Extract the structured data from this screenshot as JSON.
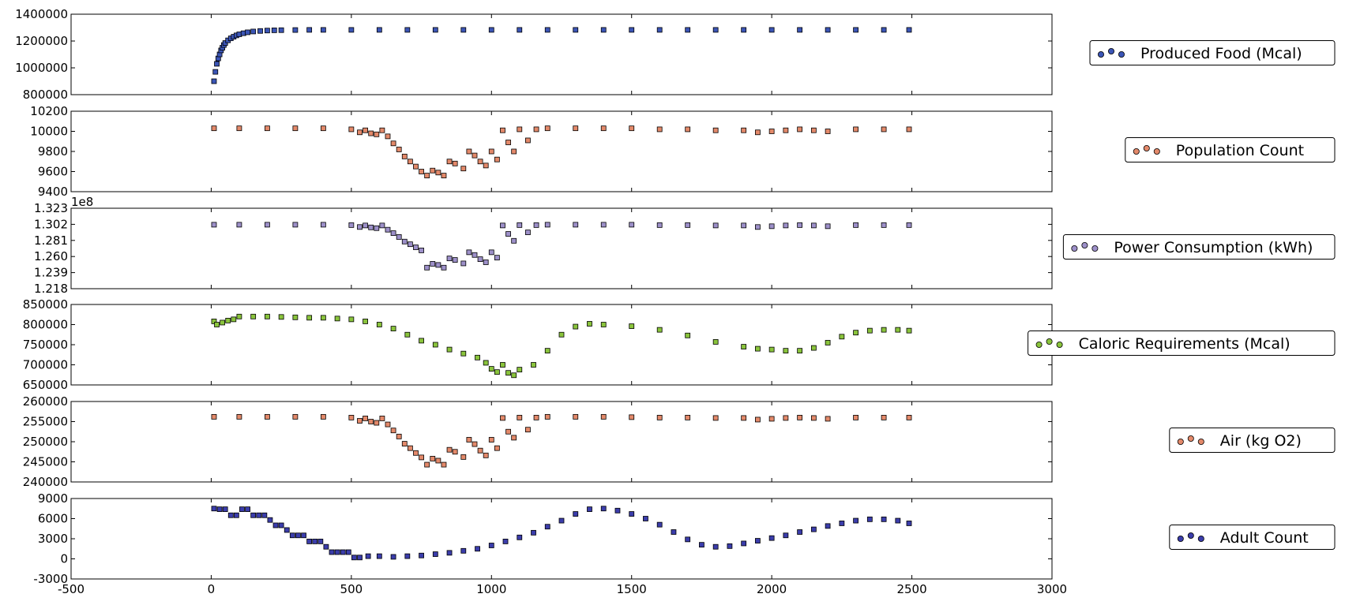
{
  "figure": {
    "x_axis": {
      "range": [
        -500,
        3000
      ],
      "ticks": [
        "-500",
        "0",
        "500",
        "1000",
        "1500",
        "2000",
        "2500",
        "3000"
      ]
    },
    "marker_edge_color": "#000000"
  },
  "chart_data": [
    {
      "type": "scatter",
      "series_name": "Produced Food (Mcal)",
      "color": "#3b55b6",
      "ylim": [
        800000,
        1400000
      ],
      "y_ticks": [
        "800000",
        "1000000",
        "1200000",
        "1400000"
      ],
      "offset_label": "",
      "x": [
        10,
        15,
        20,
        25,
        30,
        35,
        40,
        45,
        50,
        60,
        70,
        80,
        90,
        100,
        115,
        130,
        150,
        175,
        200,
        225,
        250,
        300,
        350,
        400,
        500,
        600,
        700,
        800,
        900,
        1000,
        1100,
        1200,
        1300,
        1400,
        1500,
        1600,
        1700,
        1800,
        1900,
        2000,
        2100,
        2200,
        2300,
        2400,
        2490
      ],
      "y": [
        900000,
        970000,
        1030000,
        1070000,
        1100000,
        1130000,
        1150000,
        1170000,
        1185000,
        1205000,
        1220000,
        1232000,
        1242000,
        1250000,
        1258000,
        1265000,
        1271000,
        1275000,
        1278000,
        1280000,
        1281000,
        1282000,
        1283000,
        1283000,
        1283000,
        1283000,
        1283000,
        1283000,
        1283000,
        1283000,
        1283000,
        1283000,
        1283000,
        1283000,
        1283000,
        1283000,
        1283000,
        1283000,
        1283000,
        1283000,
        1283000,
        1283000,
        1283000,
        1283000,
        1283000
      ]
    },
    {
      "type": "scatter",
      "series_name": "Population Count",
      "color": "#e3896a",
      "ylim": [
        9400,
        10200
      ],
      "y_ticks": [
        "9400",
        "9600",
        "9800",
        "10000",
        "10200"
      ],
      "offset_label": "",
      "x": [
        10,
        100,
        200,
        300,
        400,
        500,
        530,
        550,
        570,
        590,
        610,
        630,
        650,
        670,
        690,
        710,
        730,
        750,
        770,
        790,
        810,
        830,
        850,
        870,
        900,
        920,
        940,
        960,
        980,
        1000,
        1020,
        1040,
        1060,
        1080,
        1100,
        1130,
        1160,
        1200,
        1300,
        1400,
        1500,
        1600,
        1700,
        1800,
        1900,
        1950,
        2000,
        2050,
        2100,
        2150,
        2200,
        2300,
        2400,
        2490
      ],
      "y": [
        10030,
        10030,
        10030,
        10030,
        10030,
        10020,
        9990,
        10010,
        9980,
        9970,
        10010,
        9950,
        9880,
        9820,
        9750,
        9700,
        9650,
        9600,
        9560,
        9610,
        9590,
        9560,
        9700,
        9680,
        9630,
        9800,
        9760,
        9700,
        9660,
        9800,
        9720,
        10010,
        9890,
        9800,
        10020,
        9910,
        10020,
        10030,
        10030,
        10030,
        10030,
        10020,
        10020,
        10010,
        10010,
        9990,
        10000,
        10010,
        10020,
        10010,
        10000,
        10020,
        10020,
        10020
      ]
    },
    {
      "type": "scatter",
      "series_name": "Power Consumption (kWh)",
      "color": "#9d90c9",
      "ylim": [
        1.218,
        1.323
      ],
      "y_ticks": [
        "1.218",
        "1.239",
        "1.260",
        "1.281",
        "1.302",
        "1.323"
      ],
      "offset_label": "1e8",
      "x": [
        10,
        100,
        200,
        300,
        400,
        500,
        530,
        550,
        570,
        590,
        610,
        630,
        650,
        670,
        690,
        710,
        730,
        750,
        770,
        790,
        810,
        830,
        850,
        870,
        900,
        920,
        940,
        960,
        980,
        1000,
        1020,
        1040,
        1060,
        1080,
        1100,
        1130,
        1160,
        1200,
        1300,
        1400,
        1500,
        1600,
        1700,
        1800,
        1900,
        1950,
        2000,
        2050,
        2100,
        2150,
        2200,
        2300,
        2400,
        2490
      ],
      "y": [
        1.3015,
        1.3015,
        1.3015,
        1.3015,
        1.3015,
        1.301,
        1.2985,
        1.3005,
        1.298,
        1.297,
        1.3005,
        1.295,
        1.2905,
        1.2855,
        1.2795,
        1.276,
        1.272,
        1.268,
        1.2455,
        1.2505,
        1.249,
        1.2455,
        1.2575,
        1.2555,
        1.251,
        1.2655,
        1.262,
        1.2565,
        1.2525,
        1.2655,
        1.2585,
        1.3005,
        1.2895,
        1.2805,
        1.301,
        1.2915,
        1.301,
        1.3015,
        1.3015,
        1.3015,
        1.3015,
        1.301,
        1.301,
        1.3005,
        1.3005,
        1.2985,
        1.2995,
        1.3005,
        1.301,
        1.3005,
        1.2995,
        1.301,
        1.301,
        1.301
      ]
    },
    {
      "type": "scatter",
      "series_name": "Caloric Requirements (Mcal)",
      "color": "#8ac43c",
      "ylim": [
        650000,
        850000
      ],
      "y_ticks": [
        "650000",
        "700000",
        "750000",
        "800000",
        "850000"
      ],
      "offset_label": "",
      "x": [
        10,
        20,
        40,
        60,
        80,
        100,
        150,
        200,
        250,
        300,
        350,
        400,
        450,
        500,
        550,
        600,
        650,
        700,
        750,
        800,
        850,
        900,
        950,
        980,
        1000,
        1020,
        1040,
        1060,
        1080,
        1100,
        1150,
        1200,
        1250,
        1300,
        1350,
        1400,
        1500,
        1600,
        1700,
        1800,
        1900,
        1950,
        2000,
        2050,
        2100,
        2150,
        2200,
        2250,
        2300,
        2350,
        2400,
        2450,
        2490
      ],
      "y": [
        808000,
        800000,
        805000,
        810000,
        813000,
        820000,
        820000,
        820000,
        819000,
        818000,
        817000,
        817000,
        815000,
        813000,
        808000,
        800000,
        790000,
        775000,
        760000,
        750000,
        738000,
        728000,
        718000,
        705000,
        690000,
        682000,
        700000,
        680000,
        674000,
        688000,
        700000,
        735000,
        775000,
        795000,
        802000,
        800000,
        796000,
        787000,
        773000,
        757000,
        745000,
        740000,
        738000,
        735000,
        735000,
        742000,
        755000,
        770000,
        780000,
        785000,
        787000,
        787000,
        785000
      ]
    },
    {
      "type": "scatter",
      "series_name": "Air (kg O2)",
      "color": "#e3896a",
      "ylim": [
        240000,
        260000
      ],
      "y_ticks": [
        "240000",
        "245000",
        "250000",
        "255000",
        "260000"
      ],
      "offset_label": "",
      "x": [
        10,
        100,
        200,
        300,
        400,
        500,
        530,
        550,
        570,
        590,
        610,
        630,
        650,
        670,
        690,
        710,
        730,
        750,
        770,
        790,
        810,
        830,
        850,
        870,
        900,
        920,
        940,
        960,
        980,
        1000,
        1020,
        1040,
        1060,
        1080,
        1100,
        1130,
        1160,
        1200,
        1300,
        1400,
        1500,
        1600,
        1700,
        1800,
        1900,
        1950,
        2000,
        2050,
        2100,
        2150,
        2200,
        2300,
        2400,
        2490
      ],
      "y": [
        256200,
        256200,
        256200,
        256200,
        256200,
        256000,
        255200,
        255800,
        255000,
        254700,
        255800,
        254300,
        252800,
        251300,
        249500,
        248400,
        247200,
        246100,
        244300,
        245800,
        245300,
        244300,
        248000,
        247500,
        246200,
        250500,
        249400,
        247800,
        246600,
        250500,
        248400,
        255900,
        252500,
        251000,
        256000,
        253000,
        256000,
        256200,
        256200,
        256200,
        256100,
        256000,
        256000,
        255900,
        255900,
        255500,
        255700,
        255900,
        256000,
        255900,
        255700,
        256000,
        256000,
        256000
      ]
    },
    {
      "type": "scatter",
      "series_name": "Adult Count",
      "color": "#3b3dab",
      "ylim": [
        -3000,
        9000
      ],
      "y_ticks": [
        "-3000",
        "0",
        "3000",
        "6000",
        "9000"
      ],
      "offset_label": "",
      "x": [
        10,
        30,
        50,
        70,
        90,
        110,
        130,
        150,
        170,
        190,
        210,
        230,
        250,
        270,
        290,
        310,
        330,
        350,
        370,
        390,
        410,
        430,
        450,
        470,
        490,
        510,
        530,
        560,
        600,
        650,
        700,
        750,
        800,
        850,
        900,
        950,
        1000,
        1050,
        1100,
        1150,
        1200,
        1250,
        1300,
        1350,
        1400,
        1450,
        1500,
        1550,
        1600,
        1650,
        1700,
        1750,
        1800,
        1850,
        1900,
        1950,
        2000,
        2050,
        2100,
        2150,
        2200,
        2250,
        2300,
        2350,
        2400,
        2450,
        2490
      ],
      "y": [
        7500,
        7400,
        7400,
        6500,
        6500,
        7400,
        7400,
        6500,
        6500,
        6500,
        5800,
        5000,
        5000,
        4300,
        3500,
        3500,
        3500,
        2600,
        2600,
        2600,
        1800,
        1000,
        1000,
        1000,
        1000,
        200,
        200,
        400,
        400,
        300,
        400,
        500,
        700,
        900,
        1200,
        1500,
        2000,
        2600,
        3200,
        3900,
        4800,
        5700,
        6700,
        7400,
        7500,
        7200,
        6700,
        6000,
        5100,
        4000,
        2900,
        2100,
        1800,
        1900,
        2300,
        2700,
        3100,
        3500,
        4000,
        4400,
        4900,
        5300,
        5700,
        5900,
        5900,
        5700,
        5300
      ]
    }
  ]
}
